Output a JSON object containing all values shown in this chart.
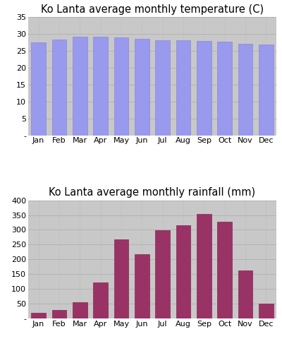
{
  "months": [
    "Jan",
    "Feb",
    "Mar",
    "Apr",
    "May",
    "Jun",
    "Jul",
    "Aug",
    "Sep",
    "Oct",
    "Nov",
    "Dec"
  ],
  "temp_values": [
    27.5,
    28.5,
    29.2,
    29.3,
    29.1,
    28.7,
    28.3,
    28.2,
    28.0,
    27.7,
    27.2,
    27.0
  ],
  "temp_title": "Ko Lanta average monthly temperature (C)",
  "temp_ylim": [
    0,
    35
  ],
  "temp_yticks": [
    5,
    10,
    15,
    20,
    25,
    30,
    35
  ],
  "temp_bar_color": "#9999ee",
  "temp_bar_edge": "#8888dd",
  "rain_values": [
    18,
    28,
    55,
    122,
    268,
    218,
    298,
    315,
    353,
    328,
    162,
    50
  ],
  "rain_title": "Ko Lanta average monthly rainfall (mm)",
  "rain_ylim": [
    0,
    400
  ],
  "rain_yticks": [
    50,
    100,
    150,
    200,
    250,
    300,
    350,
    400
  ],
  "rain_bar_color": "#993366",
  "rain_bar_edge": "#882255",
  "bg_color": "#c8c8c8",
  "fig_bg": "#ffffff",
  "grid_color": "#b0b0b0",
  "title_fontsize": 10.5,
  "tick_fontsize": 8,
  "bar_width": 0.7
}
